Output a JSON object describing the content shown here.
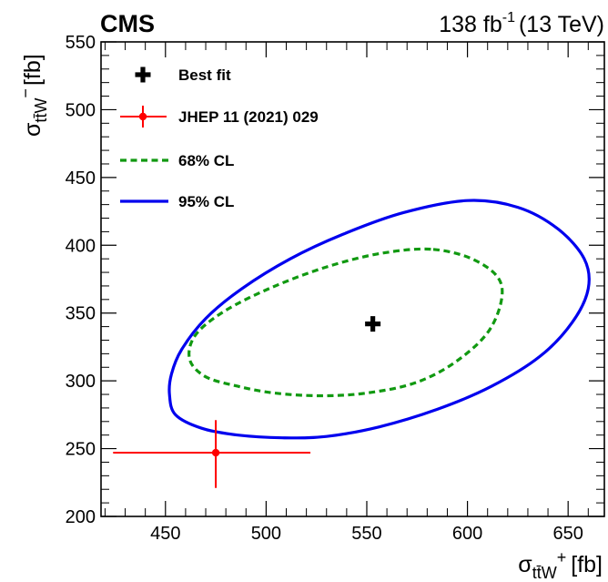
{
  "header": {
    "experiment": "CMS",
    "lumi_value": "138 fb",
    "lumi_exp": "-1",
    "energy": "(13 TeV)"
  },
  "chart_data": {
    "type": "scatter",
    "xlabel": {
      "sigma": "σ",
      "sub": "tt̄W",
      "sup": "+",
      "unit": "[fb]"
    },
    "ylabel": {
      "sigma": "σ",
      "sub": "tt̄W",
      "sup": "−",
      "unit": "[fb]"
    },
    "xlim": [
      418,
      668
    ],
    "ylim": [
      200,
      550
    ],
    "x_ticks": [
      450,
      500,
      550,
      600,
      650
    ],
    "y_ticks": [
      200,
      250,
      300,
      350,
      400,
      450,
      500,
      550
    ],
    "grid": false,
    "legend_position": "top-left",
    "best_fit": {
      "label": "Best fit",
      "x": 553,
      "y": 342,
      "color": "#000000"
    },
    "reference": {
      "label": "JHEP 11 (2021) 029",
      "x": 475,
      "y": 247,
      "x_err": [
        51,
        47
      ],
      "y_err": [
        26,
        24
      ],
      "color": "#ff0000"
    },
    "contours": [
      {
        "label": "68% CL",
        "style": "dashed",
        "color": "#119911",
        "points": [
          [
            583,
            397
          ],
          [
            605,
            388
          ],
          [
            617,
            370
          ],
          [
            612,
            340
          ],
          [
            596,
            316
          ],
          [
            575,
            299
          ],
          [
            550,
            291
          ],
          [
            527,
            289
          ],
          [
            504,
            291
          ],
          [
            486,
            296
          ],
          [
            470,
            303
          ],
          [
            462,
            316
          ],
          [
            465,
            334
          ],
          [
            480,
            352
          ],
          [
            503,
            369
          ],
          [
            530,
            384
          ],
          [
            557,
            394
          ],
          [
            583,
            397
          ]
        ]
      },
      {
        "label": "95% CL",
        "style": "solid",
        "color": "#0000ee",
        "points": [
          [
            600,
            433
          ],
          [
            625,
            428
          ],
          [
            645,
            412
          ],
          [
            658,
            390
          ],
          [
            660,
            368
          ],
          [
            652,
            343
          ],
          [
            636,
            318
          ],
          [
            612,
            296
          ],
          [
            585,
            279
          ],
          [
            556,
            266
          ],
          [
            530,
            259
          ],
          [
            508,
            258
          ],
          [
            486,
            260
          ],
          [
            468,
            265
          ],
          [
            455,
            275
          ],
          [
            452,
            290
          ],
          [
            453,
            305
          ],
          [
            458,
            323
          ],
          [
            470,
            346
          ],
          [
            488,
            368
          ],
          [
            512,
            390
          ],
          [
            538,
            408
          ],
          [
            568,
            424
          ],
          [
            600,
            433
          ]
        ]
      }
    ]
  }
}
